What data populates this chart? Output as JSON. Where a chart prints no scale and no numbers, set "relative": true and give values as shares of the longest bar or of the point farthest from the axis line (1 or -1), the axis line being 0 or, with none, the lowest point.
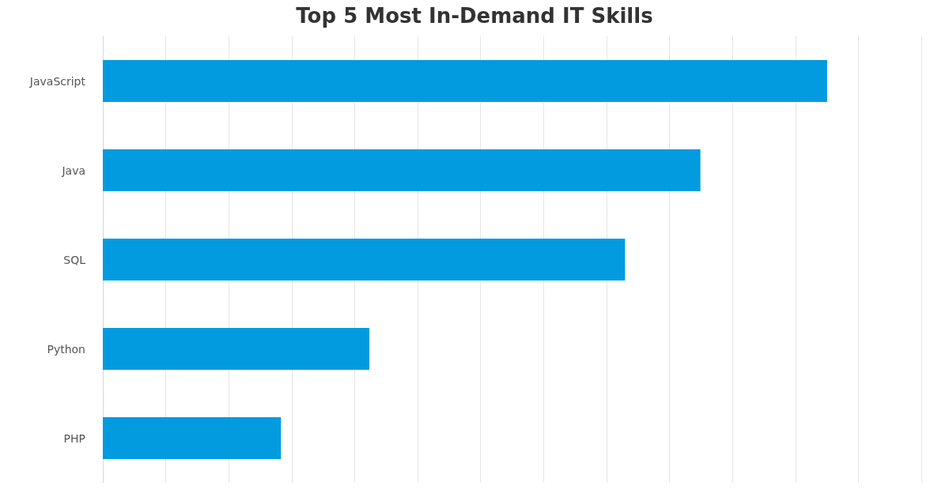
{
  "chart_data": {
    "type": "bar",
    "title": "Top 5 Most In-Demand IT Skills",
    "orientation": "horizontal",
    "relative": true,
    "categories": [
      "JavaScript",
      "Java",
      "SQL",
      "Python",
      "PHP"
    ],
    "values": [
      1,
      0.825,
      0.721,
      0.368,
      0.246
    ],
    "color": "#039be0",
    "grid": "x"
  }
}
